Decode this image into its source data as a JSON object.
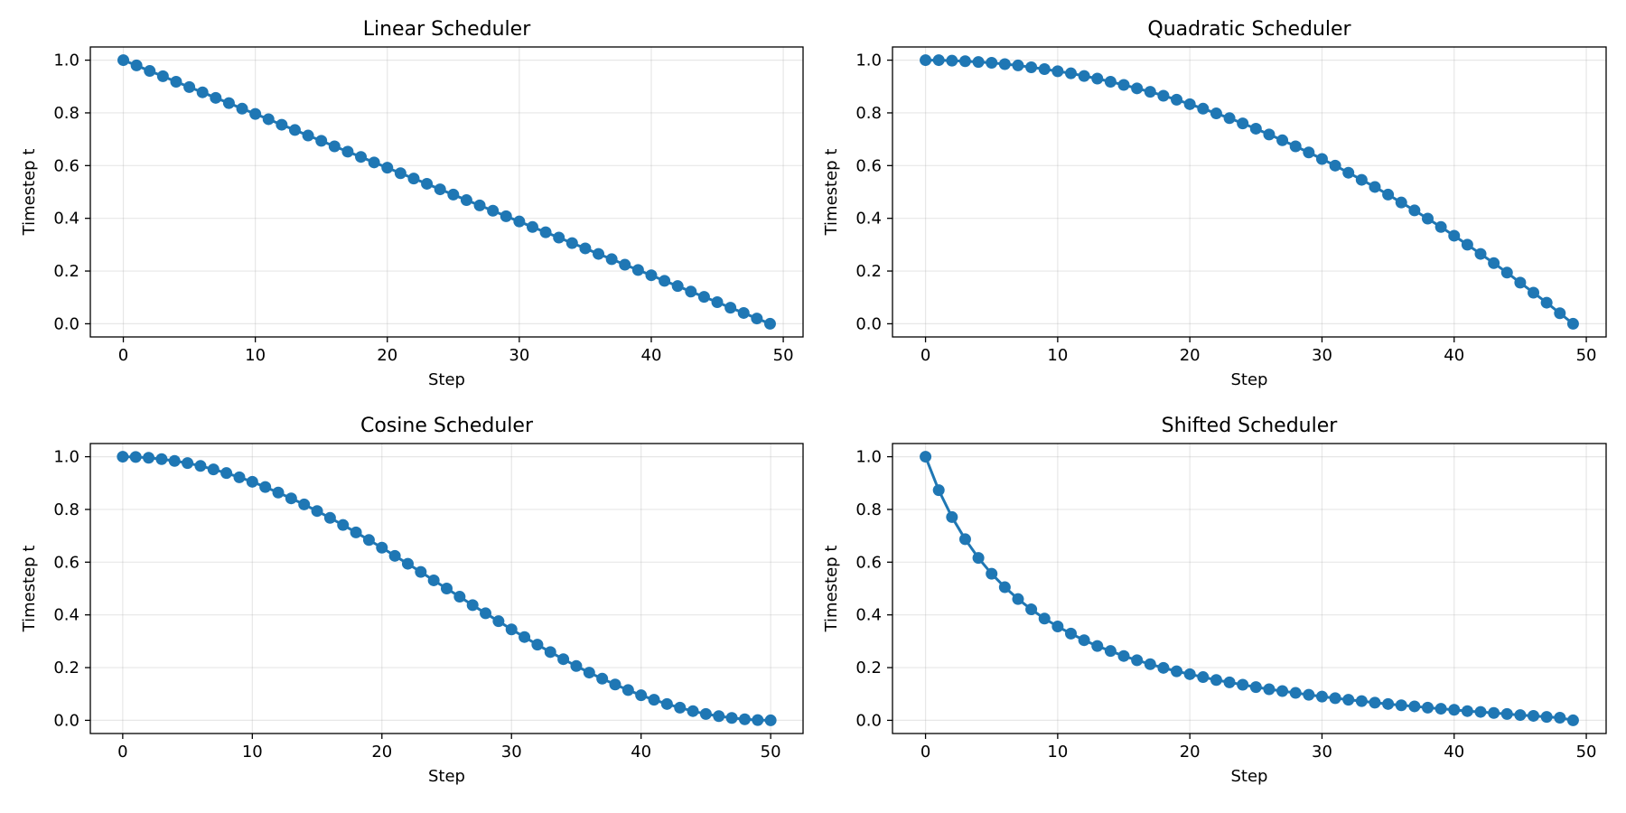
{
  "colors": {
    "series": "#1f77b4",
    "axes": "#000000",
    "grid": "#b0b0b0",
    "background": "#ffffff"
  },
  "chart_data": [
    {
      "type": "line",
      "title": "Linear Scheduler",
      "xlabel": "Step",
      "ylabel": "Timestep t",
      "xlim": [
        -2.5,
        51.5
      ],
      "ylim": [
        -0.05,
        1.05
      ],
      "xticks": [
        0,
        10,
        20,
        30,
        40,
        50
      ],
      "yticks": [
        0.0,
        0.2,
        0.4,
        0.6,
        0.8,
        1.0
      ],
      "xtick_labels": [
        "0",
        "10",
        "20",
        "30",
        "40",
        "50"
      ],
      "ytick_labels": [
        "0.0",
        "0.2",
        "0.4",
        "0.6",
        "0.8",
        "1.0"
      ],
      "grid": true,
      "marker": "circle",
      "x": [
        0,
        1,
        2,
        3,
        4,
        5,
        6,
        7,
        8,
        9,
        10,
        11,
        12,
        13,
        14,
        15,
        16,
        17,
        18,
        19,
        20,
        21,
        22,
        23,
        24,
        25,
        26,
        27,
        28,
        29,
        30,
        31,
        32,
        33,
        34,
        35,
        36,
        37,
        38,
        39,
        40,
        41,
        42,
        43,
        44,
        45,
        46,
        47,
        48,
        49
      ],
      "y": [
        1.0,
        0.98,
        0.959,
        0.939,
        0.918,
        0.898,
        0.878,
        0.857,
        0.837,
        0.816,
        0.796,
        0.776,
        0.755,
        0.735,
        0.714,
        0.694,
        0.673,
        0.653,
        0.633,
        0.612,
        0.592,
        0.571,
        0.551,
        0.531,
        0.51,
        0.49,
        0.469,
        0.449,
        0.429,
        0.408,
        0.388,
        0.367,
        0.347,
        0.327,
        0.306,
        0.286,
        0.265,
        0.245,
        0.224,
        0.204,
        0.184,
        0.163,
        0.143,
        0.122,
        0.102,
        0.082,
        0.061,
        0.041,
        0.02,
        0.0
      ]
    },
    {
      "type": "line",
      "title": "Quadratic Scheduler",
      "xlabel": "Step",
      "ylabel": "Timestep t",
      "xlim": [
        -2.5,
        51.5
      ],
      "ylim": [
        -0.05,
        1.05
      ],
      "xticks": [
        0,
        10,
        20,
        30,
        40,
        50
      ],
      "yticks": [
        0.0,
        0.2,
        0.4,
        0.6,
        0.8,
        1.0
      ],
      "xtick_labels": [
        "0",
        "10",
        "20",
        "30",
        "40",
        "50"
      ],
      "ytick_labels": [
        "0.0",
        "0.2",
        "0.4",
        "0.6",
        "0.8",
        "1.0"
      ],
      "grid": true,
      "marker": "circle",
      "x": [
        0,
        1,
        2,
        3,
        4,
        5,
        6,
        7,
        8,
        9,
        10,
        11,
        12,
        13,
        14,
        15,
        16,
        17,
        18,
        19,
        20,
        21,
        22,
        23,
        24,
        25,
        26,
        27,
        28,
        29,
        30,
        31,
        32,
        33,
        34,
        35,
        36,
        37,
        38,
        39,
        40,
        41,
        42,
        43,
        44,
        45,
        46,
        47,
        48,
        49
      ],
      "y": [
        1.0,
        1.0,
        0.998,
        0.996,
        0.993,
        0.99,
        0.985,
        0.98,
        0.973,
        0.966,
        0.958,
        0.95,
        0.94,
        0.93,
        0.918,
        0.906,
        0.893,
        0.88,
        0.865,
        0.85,
        0.833,
        0.816,
        0.798,
        0.78,
        0.76,
        0.74,
        0.718,
        0.696,
        0.673,
        0.65,
        0.625,
        0.6,
        0.573,
        0.546,
        0.519,
        0.49,
        0.46,
        0.43,
        0.399,
        0.367,
        0.334,
        0.3,
        0.265,
        0.23,
        0.194,
        0.156,
        0.118,
        0.08,
        0.04,
        0.0
      ]
    },
    {
      "type": "line",
      "title": "Cosine Scheduler",
      "xlabel": "Step",
      "ylabel": "Timestep t",
      "xlim": [
        -2.5,
        52.5
      ],
      "ylim": [
        -0.05,
        1.05
      ],
      "xticks": [
        0,
        10,
        20,
        30,
        40,
        50
      ],
      "yticks": [
        0.0,
        0.2,
        0.4,
        0.6,
        0.8,
        1.0
      ],
      "xtick_labels": [
        "0",
        "10",
        "20",
        "30",
        "40",
        "50"
      ],
      "ytick_labels": [
        "0.0",
        "0.2",
        "0.4",
        "0.6",
        "0.8",
        "1.0"
      ],
      "grid": true,
      "marker": "circle",
      "x": [
        0,
        1,
        2,
        3,
        4,
        5,
        6,
        7,
        8,
        9,
        10,
        11,
        12,
        13,
        14,
        15,
        16,
        17,
        18,
        19,
        20,
        21,
        22,
        23,
        24,
        25,
        26,
        27,
        28,
        29,
        30,
        31,
        32,
        33,
        34,
        35,
        36,
        37,
        38,
        39,
        40,
        41,
        42,
        43,
        44,
        45,
        46,
        47,
        48,
        49,
        50
      ],
      "y": [
        1.0,
        0.999,
        0.996,
        0.991,
        0.984,
        0.976,
        0.965,
        0.952,
        0.938,
        0.922,
        0.905,
        0.885,
        0.864,
        0.842,
        0.819,
        0.794,
        0.768,
        0.741,
        0.713,
        0.684,
        0.655,
        0.624,
        0.594,
        0.563,
        0.531,
        0.5,
        0.469,
        0.437,
        0.406,
        0.376,
        0.345,
        0.316,
        0.287,
        0.259,
        0.232,
        0.206,
        0.181,
        0.158,
        0.136,
        0.115,
        0.095,
        0.078,
        0.062,
        0.048,
        0.035,
        0.024,
        0.016,
        0.009,
        0.004,
        0.001,
        0.0
      ]
    },
    {
      "type": "line",
      "title": "Shifted Scheduler",
      "xlabel": "Step",
      "ylabel": "Timestep t",
      "xlim": [
        -2.5,
        51.5
      ],
      "ylim": [
        -0.05,
        1.05
      ],
      "xticks": [
        0,
        10,
        20,
        30,
        40,
        50
      ],
      "yticks": [
        0.0,
        0.2,
        0.4,
        0.6,
        0.8,
        1.0
      ],
      "xtick_labels": [
        "0",
        "10",
        "20",
        "30",
        "40",
        "50"
      ],
      "ytick_labels": [
        "0.0",
        "0.2",
        "0.4",
        "0.6",
        "0.8",
        "1.0"
      ],
      "grid": true,
      "marker": "circle",
      "x": [
        0,
        1,
        2,
        3,
        4,
        5,
        6,
        7,
        8,
        9,
        10,
        11,
        12,
        13,
        14,
        15,
        16,
        17,
        18,
        19,
        20,
        21,
        22,
        23,
        24,
        25,
        26,
        27,
        28,
        29,
        30,
        31,
        32,
        33,
        34,
        35,
        36,
        37,
        38,
        39,
        40,
        41,
        42,
        43,
        44,
        45,
        46,
        47,
        48,
        49
      ],
      "y": [
        1.0,
        0.873,
        0.771,
        0.687,
        0.616,
        0.556,
        0.505,
        0.46,
        0.421,
        0.386,
        0.356,
        0.329,
        0.304,
        0.282,
        0.263,
        0.244,
        0.228,
        0.213,
        0.199,
        0.186,
        0.175,
        0.164,
        0.153,
        0.144,
        0.135,
        0.126,
        0.118,
        0.111,
        0.104,
        0.097,
        0.09,
        0.084,
        0.078,
        0.073,
        0.067,
        0.062,
        0.057,
        0.053,
        0.048,
        0.044,
        0.04,
        0.035,
        0.032,
        0.028,
        0.024,
        0.02,
        0.017,
        0.013,
        0.01,
        0.0
      ]
    }
  ]
}
